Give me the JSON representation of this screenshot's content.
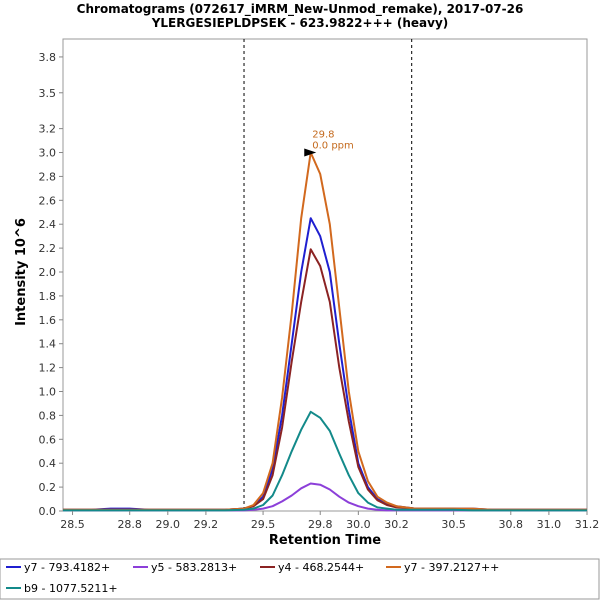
{
  "chart_data": {
    "type": "line",
    "title": "Chromatograms (072617_iMRM_New-Unmod_remake), 2017-07-26",
    "subtitle": "YLERGESIEPLDPSEK - 623.9822+++ (heavy)",
    "xlabel": "Retention Time",
    "ylabel": "Intensity 10^6",
    "xlim": [
      28.45,
      31.2
    ],
    "ylim": [
      0,
      3.95
    ],
    "xticks": [
      28.5,
      28.8,
      29.0,
      29.2,
      29.5,
      29.8,
      30.0,
      30.2,
      30.5,
      30.8,
      31.0,
      31.2
    ],
    "xtick_labels": [
      "28.5",
      "28.8",
      "29.0",
      "29.2",
      "29.5",
      "29.8",
      "30.0",
      "30.2",
      "30.5",
      "30.8",
      "31.0",
      "31.2"
    ],
    "yticks": [
      0.0,
      0.2,
      0.4,
      0.6,
      0.8,
      1.0,
      1.2,
      1.4,
      1.6,
      1.8,
      2.0,
      2.2,
      2.4,
      2.6,
      2.8,
      3.0,
      3.2,
      3.5,
      3.8
    ],
    "ytick_labels": [
      "0.0",
      "0.2",
      "0.4",
      "0.6",
      "0.8",
      "1.0",
      "1.2",
      "1.4",
      "1.6",
      "1.8",
      "2.0",
      "2.2",
      "2.4",
      "2.6",
      "2.8",
      "3.0",
      "3.2",
      "3.5",
      "3.8"
    ],
    "grid": false,
    "boundaries": [
      29.4,
      30.28
    ],
    "annotation": {
      "x": 29.8,
      "y": 3.0,
      "line1": "29.8",
      "line2": "0.0 ppm",
      "color": "#c46a1e"
    },
    "x": [
      28.45,
      28.6,
      28.7,
      28.8,
      28.9,
      29.0,
      29.1,
      29.2,
      29.3,
      29.4,
      29.45,
      29.5,
      29.55,
      29.6,
      29.65,
      29.7,
      29.75,
      29.8,
      29.85,
      29.9,
      29.95,
      30.0,
      30.05,
      30.1,
      30.15,
      30.2,
      30.3,
      30.4,
      30.5,
      30.6,
      30.7,
      30.8,
      30.9,
      31.0,
      31.2
    ],
    "series": [
      {
        "name": "y7 - 793.4182+",
        "color": "#1f1fd0",
        "values": [
          0.01,
          0.01,
          0.02,
          0.02,
          0.01,
          0.01,
          0.01,
          0.01,
          0.01,
          0.02,
          0.04,
          0.12,
          0.35,
          0.8,
          1.4,
          2.0,
          2.45,
          2.3,
          2.0,
          1.4,
          0.85,
          0.4,
          0.2,
          0.1,
          0.06,
          0.04,
          0.02,
          0.02,
          0.02,
          0.02,
          0.01,
          0.01,
          0.01,
          0.01,
          0.01
        ]
      },
      {
        "name": "y5 - 583.2813+",
        "color": "#8c3fd9",
        "values": [
          0.005,
          0.005,
          0.005,
          0.005,
          0.005,
          0.005,
          0.005,
          0.005,
          0.005,
          0.005,
          0.01,
          0.02,
          0.04,
          0.08,
          0.13,
          0.19,
          0.23,
          0.22,
          0.18,
          0.12,
          0.07,
          0.04,
          0.02,
          0.01,
          0.005,
          0.005,
          0.005,
          0.005,
          0.005,
          0.005,
          0.005,
          0.005,
          0.005,
          0.005,
          0.005
        ]
      },
      {
        "name": "y4 - 468.2544+",
        "color": "#8b2323",
        "values": [
          0.01,
          0.01,
          0.01,
          0.01,
          0.01,
          0.01,
          0.01,
          0.01,
          0.01,
          0.02,
          0.04,
          0.1,
          0.3,
          0.7,
          1.25,
          1.75,
          2.19,
          2.05,
          1.75,
          1.2,
          0.75,
          0.37,
          0.18,
          0.09,
          0.05,
          0.03,
          0.02,
          0.02,
          0.02,
          0.01,
          0.01,
          0.01,
          0.01,
          0.01,
          0.01
        ]
      },
      {
        "name": "y7 - 397.2127++",
        "color": "#d2691e",
        "values": [
          0.01,
          0.01,
          0.01,
          0.01,
          0.01,
          0.01,
          0.01,
          0.01,
          0.01,
          0.02,
          0.05,
          0.15,
          0.4,
          0.95,
          1.65,
          2.45,
          3.0,
          2.82,
          2.4,
          1.7,
          1.0,
          0.5,
          0.25,
          0.12,
          0.07,
          0.04,
          0.02,
          0.02,
          0.02,
          0.02,
          0.01,
          0.01,
          0.01,
          0.01,
          0.01
        ]
      },
      {
        "name": "b9 - 1077.5211+",
        "color": "#138a8a",
        "values": [
          0.005,
          0.005,
          0.005,
          0.005,
          0.005,
          0.005,
          0.005,
          0.005,
          0.005,
          0.01,
          0.02,
          0.05,
          0.13,
          0.3,
          0.5,
          0.68,
          0.83,
          0.78,
          0.67,
          0.48,
          0.3,
          0.15,
          0.07,
          0.03,
          0.02,
          0.01,
          0.01,
          0.01,
          0.01,
          0.005,
          0.005,
          0.005,
          0.005,
          0.005,
          0.005
        ]
      }
    ]
  }
}
